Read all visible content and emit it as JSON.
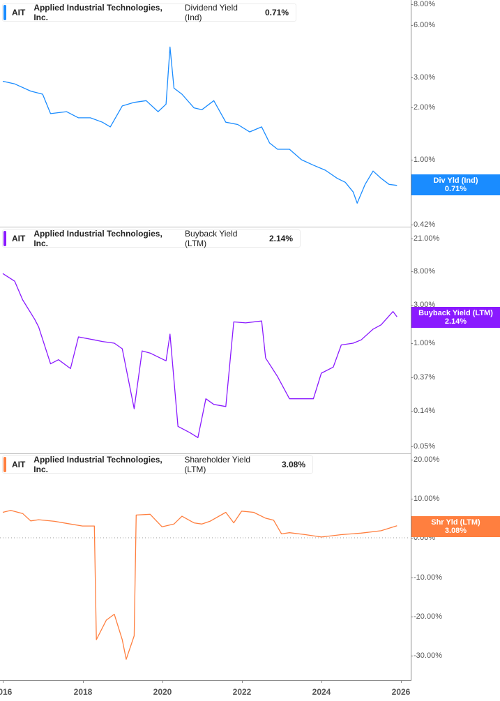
{
  "panels": [
    {
      "ticker": "AIT",
      "company": "Applied Industrial Technologies, Inc.",
      "metric": "Dividend Yield (Ind)",
      "value": "0.71%",
      "color": "#1a8cff",
      "badge_label": "Div Yld (Ind)",
      "badge_value": "0.71%",
      "y_ticks": [
        "8.00%",
        "6.00%",
        "3.00%",
        "2.00%",
        "1.00%",
        "0.72%",
        "0.42%"
      ]
    },
    {
      "ticker": "AIT",
      "company": "Applied Industrial Technologies, Inc.",
      "metric": "Buyback Yield (LTM)",
      "value": "2.14%",
      "color": "#8a1aff",
      "badge_label": "Buyback Yield (LTM)",
      "badge_value": "2.14%",
      "y_ticks": [
        "21.00%",
        "8.00%",
        "3.00%",
        "1.00%",
        "0.37%",
        "0.14%",
        "0.05%"
      ]
    },
    {
      "ticker": "AIT",
      "company": "Applied Industrial Technologies, Inc.",
      "metric": "Shareholder Yield (LTM)",
      "value": "3.08%",
      "color": "#ff7f3f",
      "badge_label": "Shr Yld (LTM)",
      "badge_value": "3.08%",
      "y_ticks": [
        "20.00%",
        "10.00%",
        "0.00%",
        "-10.00%",
        "-20.00%",
        "-30.00%"
      ]
    }
  ],
  "x_axis": {
    "ticks": [
      "2016",
      "2018",
      "2020",
      "2022",
      "2024",
      "2026"
    ]
  },
  "chart_data": [
    {
      "type": "line",
      "title": "AIT Applied Industrial Technologies, Inc. Dividend Yield (Ind)",
      "xlabel": "",
      "ylabel": "Dividend Yield (%)",
      "y_scale": "log",
      "ylim": [
        0.42,
        8.0
      ],
      "y_ticks": [
        8.0,
        6.0,
        3.0,
        2.0,
        1.0,
        0.72,
        0.42
      ],
      "x_ticks": [
        2016,
        2018,
        2020,
        2022,
        2024,
        2026
      ],
      "grid": false,
      "legend_position": "top-left",
      "series": [
        {
          "name": "Dividend Yield (Ind)",
          "color": "#1a8cff",
          "x": [
            2016.0,
            2016.3,
            2016.7,
            2017.0,
            2017.2,
            2017.6,
            2017.9,
            2018.2,
            2018.5,
            2018.7,
            2019.0,
            2019.3,
            2019.6,
            2019.9,
            2020.1,
            2020.2,
            2020.3,
            2020.5,
            2020.8,
            2021.0,
            2021.3,
            2021.6,
            2021.9,
            2022.2,
            2022.5,
            2022.7,
            2022.9,
            2023.2,
            2023.5,
            2023.8,
            2024.1,
            2024.4,
            2024.6,
            2024.8,
            2024.9,
            2025.1,
            2025.3,
            2025.5,
            2025.7,
            2025.9
          ],
          "values": [
            2.85,
            2.75,
            2.5,
            2.4,
            1.85,
            1.9,
            1.75,
            1.75,
            1.65,
            1.55,
            2.05,
            2.15,
            2.2,
            1.9,
            2.1,
            4.5,
            2.6,
            2.4,
            2.0,
            1.95,
            2.2,
            1.65,
            1.6,
            1.45,
            1.55,
            1.25,
            1.15,
            1.15,
            1.0,
            0.93,
            0.87,
            0.78,
            0.74,
            0.65,
            0.56,
            0.72,
            0.86,
            0.78,
            0.72,
            0.71
          ]
        }
      ]
    },
    {
      "type": "line",
      "title": "AIT Applied Industrial Technologies, Inc. Buyback Yield (LTM)",
      "xlabel": "",
      "ylabel": "Buyback Yield (%)",
      "y_scale": "log",
      "ylim": [
        0.05,
        21.0
      ],
      "y_ticks": [
        21.0,
        8.0,
        3.0,
        1.0,
        0.37,
        0.14,
        0.05
      ],
      "x_ticks": [
        2016,
        2018,
        2020,
        2022,
        2024,
        2026
      ],
      "grid": false,
      "legend_position": "top-left",
      "series": [
        {
          "name": "Buyback Yield (LTM)",
          "color": "#8a1aff",
          "x": [
            2016.0,
            2016.3,
            2016.5,
            2016.8,
            2016.9,
            2017.2,
            2017.4,
            2017.7,
            2017.9,
            2018.3,
            2018.5,
            2018.8,
            2019.0,
            2019.3,
            2019.5,
            2019.7,
            2020.1,
            2020.2,
            2020.4,
            2020.7,
            2020.9,
            2021.1,
            2021.3,
            2021.6,
            2021.8,
            2022.1,
            2022.5,
            2022.6,
            2022.9,
            2023.2,
            2023.5,
            2023.8,
            2024.0,
            2024.3,
            2024.5,
            2024.8,
            2025.0,
            2025.3,
            2025.5,
            2025.8,
            2025.9
          ],
          "values": [
            7.5,
            6.0,
            3.5,
            2.0,
            1.6,
            0.55,
            0.62,
            0.48,
            1.2,
            1.1,
            1.05,
            1.0,
            0.85,
            0.15,
            0.8,
            0.75,
            0.6,
            1.3,
            0.09,
            0.075,
            0.065,
            0.2,
            0.17,
            0.16,
            1.85,
            1.8,
            1.9,
            0.65,
            0.38,
            0.2,
            0.2,
            0.2,
            0.42,
            0.5,
            0.95,
            1.0,
            1.1,
            1.5,
            1.7,
            2.5,
            2.14
          ]
        }
      ]
    },
    {
      "type": "line",
      "title": "AIT Applied Industrial Technologies, Inc. Shareholder Yield (LTM)",
      "xlabel": "",
      "ylabel": "Shareholder Yield (%)",
      "y_scale": "linear",
      "ylim": [
        -36,
        20
      ],
      "y_ticks": [
        20,
        10,
        0,
        -10,
        -20,
        -30
      ],
      "x_ticks": [
        2016,
        2018,
        2020,
        2022,
        2024,
        2026
      ],
      "grid": false,
      "reference_line": 0,
      "legend_position": "top-left",
      "series": [
        {
          "name": "Shareholder Yield (LTM)",
          "color": "#ff7f3f",
          "x": [
            2016.0,
            2016.2,
            2016.5,
            2016.7,
            2016.9,
            2017.3,
            2017.7,
            2018.0,
            2018.3,
            2018.35,
            2018.6,
            2018.8,
            2019.0,
            2019.1,
            2019.3,
            2019.35,
            2019.7,
            2020.0,
            2020.3,
            2020.5,
            2020.8,
            2021.0,
            2021.2,
            2021.6,
            2021.8,
            2022.0,
            2022.3,
            2022.6,
            2022.8,
            2023.0,
            2023.2,
            2023.6,
            2024.0,
            2024.5,
            2025.0,
            2025.5,
            2025.9
          ],
          "values": [
            6.5,
            7.0,
            6.2,
            4.3,
            4.6,
            4.2,
            3.5,
            3.0,
            3.0,
            -26.0,
            -21.0,
            -19.5,
            -26.0,
            -31.0,
            -25.0,
            5.8,
            6.0,
            2.8,
            3.5,
            5.5,
            3.8,
            3.5,
            4.2,
            6.5,
            3.8,
            6.8,
            6.5,
            5.0,
            4.5,
            1.0,
            1.3,
            0.8,
            0.2,
            0.8,
            1.2,
            1.8,
            3.08
          ]
        }
      ]
    }
  ]
}
